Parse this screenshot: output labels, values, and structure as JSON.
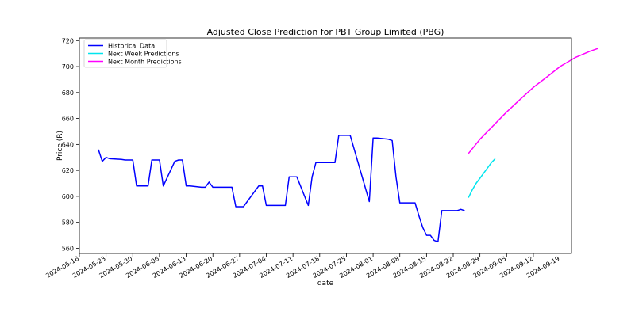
{
  "chart_data": {
    "type": "line",
    "title": "Adjusted Close Prediction for PBT Group Limited (PBG)",
    "xlabel": "date",
    "ylabel": "Price (R)",
    "xlim": [
      "2024-05-16",
      "2024-09-22"
    ],
    "ylim": [
      556,
      722
    ],
    "xticks": [
      "2024-05-16",
      "2024-05-23",
      "2024-05-30",
      "2024-06-06",
      "2024-06-13",
      "2024-06-20",
      "2024-06-27",
      "2024-07-04",
      "2024-07-11",
      "2024-07-18",
      "2024-07-25",
      "2024-08-01",
      "2024-08-08",
      "2024-08-15",
      "2024-08-22",
      "2024-08-29",
      "2024-09-05",
      "2024-09-12",
      "2024-09-19"
    ],
    "yticks": [
      560,
      580,
      600,
      620,
      640,
      660,
      680,
      700,
      720
    ],
    "grid": false,
    "legend_position": "upper-left",
    "series": [
      {
        "name": "Historical Data",
        "color": "#0000ff",
        "points": [
          [
            "2024-05-21",
            636
          ],
          [
            "2024-05-22",
            627
          ],
          [
            "2024-05-23",
            630
          ],
          [
            "2024-05-24",
            629
          ],
          [
            "2024-05-27",
            628.5
          ],
          [
            "2024-05-28",
            628
          ],
          [
            "2024-05-29",
            628
          ],
          [
            "2024-05-30",
            628
          ],
          [
            "2024-05-31",
            608
          ],
          [
            "2024-06-03",
            608
          ],
          [
            "2024-06-04",
            628
          ],
          [
            "2024-06-05",
            628
          ],
          [
            "2024-06-06",
            628
          ],
          [
            "2024-06-07",
            608
          ],
          [
            "2024-06-10",
            627
          ],
          [
            "2024-06-11",
            628
          ],
          [
            "2024-06-12",
            628
          ],
          [
            "2024-06-13",
            608
          ],
          [
            "2024-06-14",
            608
          ],
          [
            "2024-06-17",
            607
          ],
          [
            "2024-06-18",
            607
          ],
          [
            "2024-06-19",
            611
          ],
          [
            "2024-06-20",
            607
          ],
          [
            "2024-06-21",
            607
          ],
          [
            "2024-06-24",
            607
          ],
          [
            "2024-06-25",
            607
          ],
          [
            "2024-06-26",
            592
          ],
          [
            "2024-06-27",
            592
          ],
          [
            "2024-06-28",
            592
          ],
          [
            "2024-07-01",
            604
          ],
          [
            "2024-07-02",
            608
          ],
          [
            "2024-07-03",
            608
          ],
          [
            "2024-07-04",
            593
          ],
          [
            "2024-07-05",
            593
          ],
          [
            "2024-07-08",
            593
          ],
          [
            "2024-07-09",
            593
          ],
          [
            "2024-07-10",
            615
          ],
          [
            "2024-07-11",
            615
          ],
          [
            "2024-07-12",
            615
          ],
          [
            "2024-07-15",
            593
          ],
          [
            "2024-07-16",
            615
          ],
          [
            "2024-07-17",
            626
          ],
          [
            "2024-07-18",
            626
          ],
          [
            "2024-07-19",
            626
          ],
          [
            "2024-07-22",
            626
          ],
          [
            "2024-07-23",
            647
          ],
          [
            "2024-07-24",
            647
          ],
          [
            "2024-07-25",
            647
          ],
          [
            "2024-07-26",
            647
          ],
          [
            "2024-07-31",
            596
          ],
          [
            "2024-08-01",
            645
          ],
          [
            "2024-08-02",
            645
          ],
          [
            "2024-08-05",
            644
          ],
          [
            "2024-08-06",
            643
          ],
          [
            "2024-08-07",
            615
          ],
          [
            "2024-08-08",
            595
          ],
          [
            "2024-08-09",
            595
          ],
          [
            "2024-08-12",
            595
          ],
          [
            "2024-08-13",
            585
          ],
          [
            "2024-08-14",
            576
          ],
          [
            "2024-08-15",
            570
          ],
          [
            "2024-08-16",
            570
          ],
          [
            "2024-08-17",
            566
          ],
          [
            "2024-08-18",
            565
          ],
          [
            "2024-08-19",
            589
          ],
          [
            "2024-08-20",
            589
          ],
          [
            "2024-08-21",
            589
          ],
          [
            "2024-08-22",
            589
          ],
          [
            "2024-08-23",
            589
          ],
          [
            "2024-08-24",
            590
          ],
          [
            "2024-08-25",
            589
          ]
        ]
      },
      {
        "name": "Next Week Predictions",
        "color": "#00e5ee",
        "points": [
          [
            "2024-08-26",
            599
          ],
          [
            "2024-08-27",
            605
          ],
          [
            "2024-08-28",
            610
          ],
          [
            "2024-08-29",
            614
          ],
          [
            "2024-08-30",
            618
          ],
          [
            "2024-08-31",
            622
          ],
          [
            "2024-09-01",
            626
          ],
          [
            "2024-09-02",
            629
          ]
        ]
      },
      {
        "name": "Next Month Predictions",
        "color": "#ff00ff",
        "points": [
          [
            "2024-08-26",
            633
          ],
          [
            "2024-08-29",
            644
          ],
          [
            "2024-09-02",
            656
          ],
          [
            "2024-09-05",
            665
          ],
          [
            "2024-09-09",
            676
          ],
          [
            "2024-09-12",
            684
          ],
          [
            "2024-09-16",
            693
          ],
          [
            "2024-09-19",
            700
          ],
          [
            "2024-09-23",
            707
          ],
          [
            "2024-09-27",
            712
          ],
          [
            "2024-09-29",
            714
          ]
        ]
      }
    ]
  }
}
